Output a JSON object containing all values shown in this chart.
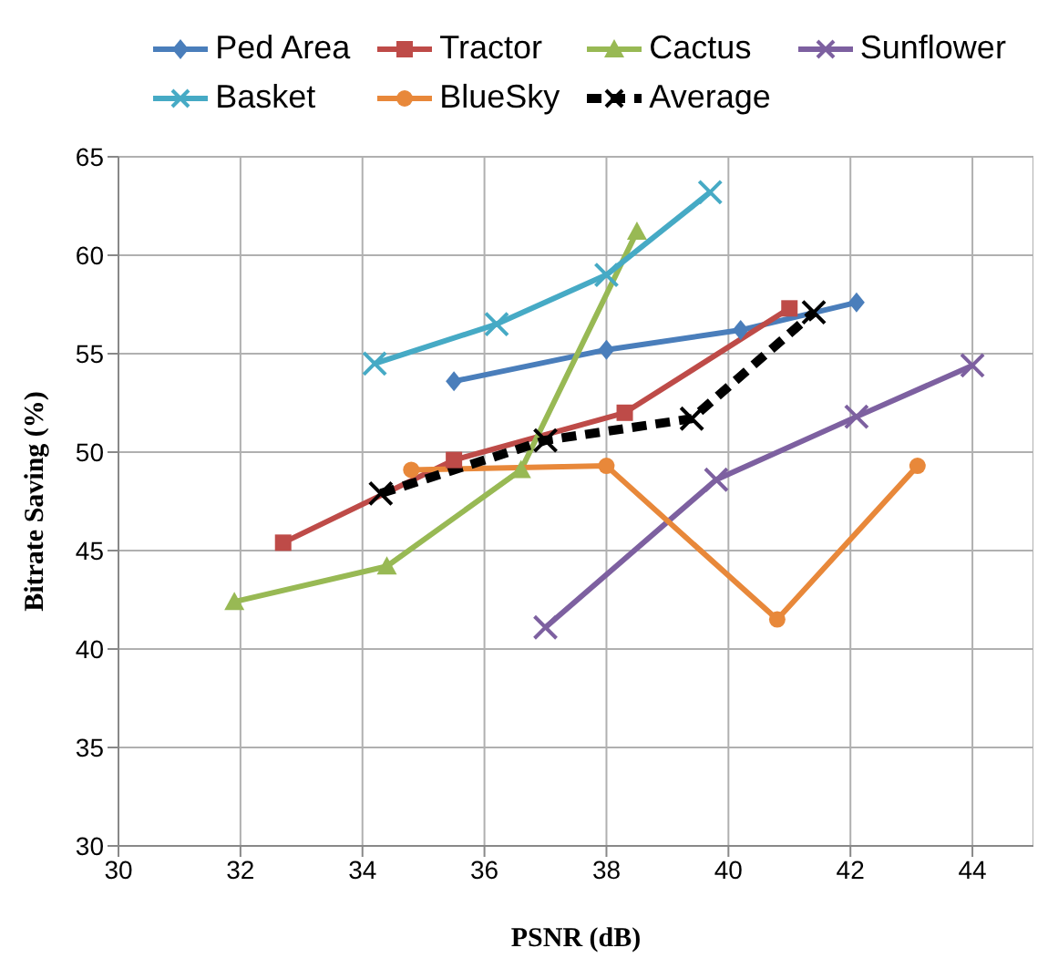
{
  "chart_data": {
    "type": "line",
    "xlabel": "PSNR (dB)",
    "ylabel": "Bitrate Saving (%)",
    "xlim": [
      30,
      45
    ],
    "xticks": [
      30,
      32,
      34,
      36,
      38,
      40,
      42,
      44
    ],
    "ylim": [
      30,
      65
    ],
    "yticks": [
      30,
      35,
      40,
      45,
      50,
      55,
      60,
      65
    ],
    "grid": true,
    "legend": "top",
    "series": [
      {
        "name": "Ped Area",
        "color": "#4a7ebb",
        "marker": "diamond",
        "x": [
          35.5,
          38,
          40.2,
          42.1
        ],
        "values": [
          53.6,
          55.2,
          56.2,
          57.6
        ]
      },
      {
        "name": "Tractor",
        "color": "#be4b48",
        "marker": "square",
        "x": [
          32.7,
          35.5,
          38.3,
          41
        ],
        "values": [
          45.4,
          49.6,
          52,
          57.3
        ]
      },
      {
        "name": "Cactus",
        "color": "#98b954",
        "marker": "triangle",
        "x": [
          31.9,
          34.4,
          36.6,
          38.5
        ],
        "values": [
          42.4,
          44.2,
          49.1,
          61.2
        ]
      },
      {
        "name": "Sunflower",
        "color": "#7d60a0",
        "marker": "cross",
        "x": [
          37,
          39.8,
          42.1,
          44
        ],
        "values": [
          41.1,
          48.6,
          51.8,
          54.4
        ]
      },
      {
        "name": "Basket",
        "color": "#46aac5",
        "marker": "cross",
        "x": [
          34.2,
          36.2,
          38,
          39.7
        ],
        "values": [
          54.5,
          56.5,
          59,
          63.2
        ]
      },
      {
        "name": "BlueSky",
        "color": "#e8883a",
        "marker": "circle",
        "x": [
          34.8,
          38,
          40.8,
          43.1
        ],
        "values": [
          49.1,
          49.3,
          41.5,
          49.3
        ]
      },
      {
        "name": "Average",
        "color": "#000000",
        "marker": "cross",
        "line_style": "dashed",
        "x": [
          34.3,
          37,
          39.4,
          41.4
        ],
        "values": [
          47.9,
          50.6,
          51.7,
          57.1
        ]
      }
    ]
  }
}
